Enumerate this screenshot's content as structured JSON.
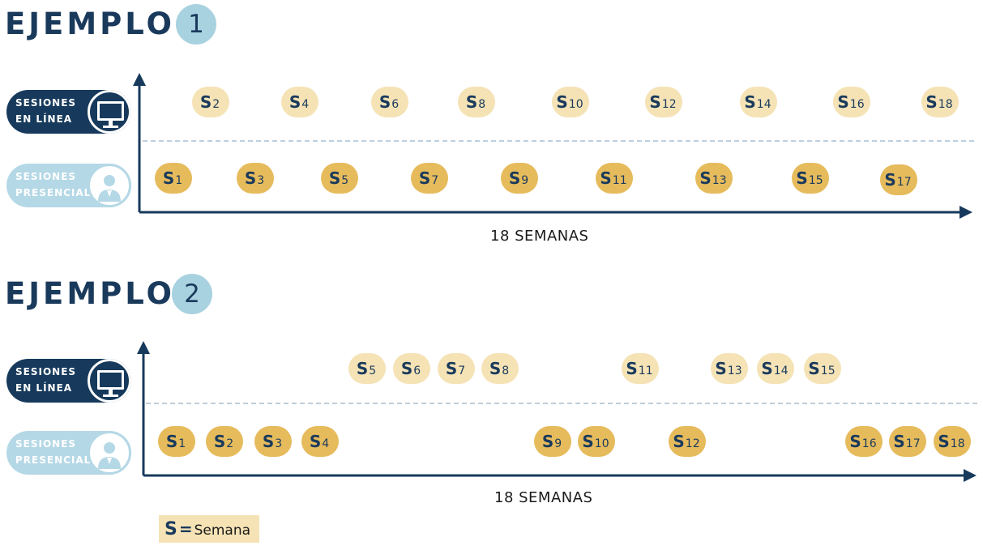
{
  "examples": [
    {
      "title": "EJEMPLO",
      "number": "1",
      "online_label": "SESIONES EN LÍNEA",
      "presencial_label": "SESIONES PRESENCIAL",
      "axis_label": "18 SEMANAS",
      "online_weeks": [
        "2",
        "4",
        "6",
        "8",
        "10",
        "12",
        "14",
        "16",
        "18"
      ],
      "presencial_weeks": [
        "1",
        "3",
        "5",
        "7",
        "9",
        "11",
        "13",
        "15",
        "17"
      ]
    },
    {
      "title": "EJEMPLO",
      "number": "2",
      "online_label": "SESIONES EN LÍNEA",
      "presencial_label": "SESIONES PRESENCIAL",
      "axis_label": "18 SEMANAS",
      "online_weeks": [
        "5",
        "6",
        "7",
        "8",
        "11",
        "13",
        "14",
        "15"
      ],
      "presencial_weeks": [
        "1",
        "2",
        "3",
        "4",
        "9",
        "10",
        "12",
        "16",
        "17",
        "18"
      ]
    }
  ],
  "session_letter": "S",
  "legend": {
    "letter": "S",
    "equals": "=",
    "text": "Semana"
  },
  "colors": {
    "navy": "#173a5c",
    "light_blue": "#b5d8e6",
    "online_pill": "#f5e3b6",
    "presencial_pill": "#e6bb5c",
    "number_circle": "#a9d2e0"
  },
  "icons": {
    "online": "monitor-icon",
    "presencial": "person-icon"
  }
}
